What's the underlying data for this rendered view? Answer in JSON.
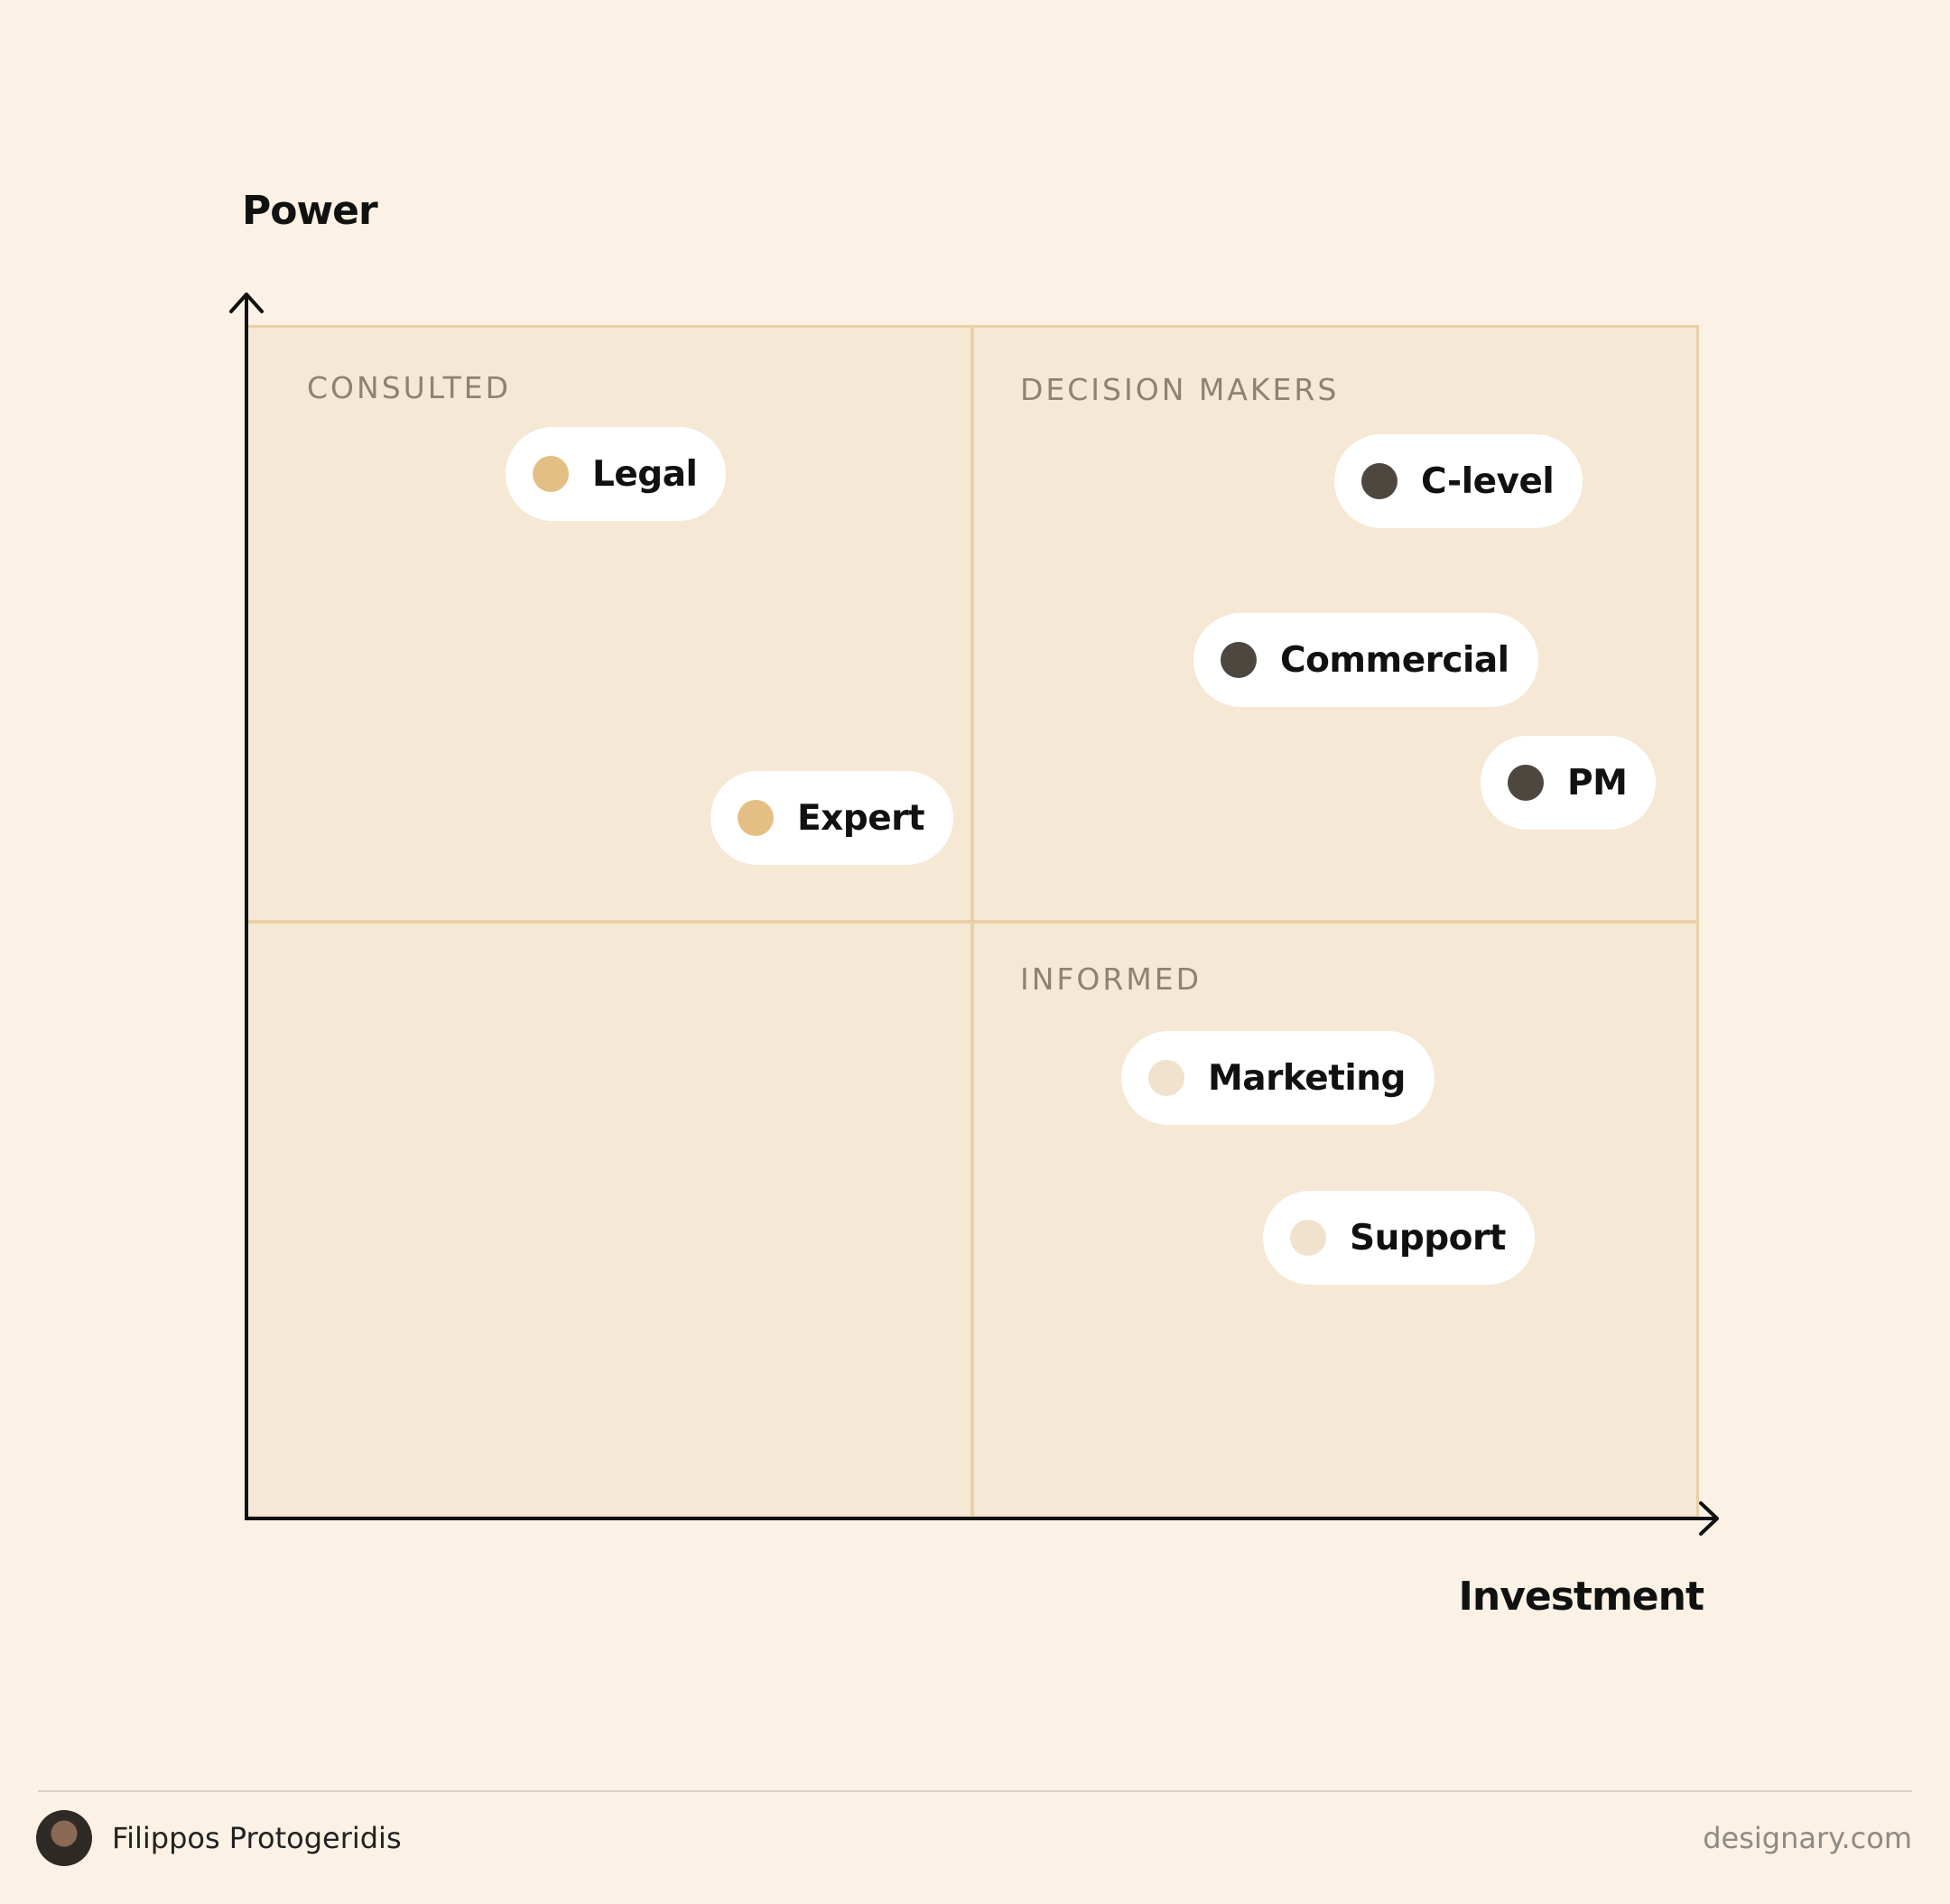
{
  "axes": {
    "y_title": "Power",
    "x_title": "Investment"
  },
  "quadrants": {
    "top_left": "CONSULTED",
    "top_right": "DECISION MAKERS",
    "bottom_left": "",
    "bottom_right": "INFORMED"
  },
  "stakeholders": [
    {
      "label": "Legal",
      "group": "CONSULTED",
      "dot_color": "#e4bf84"
    },
    {
      "label": "Expert",
      "group": "CONSULTED",
      "dot_color": "#e4bf84"
    },
    {
      "label": "C-level",
      "group": "DECISION MAKERS",
      "dot_color": "#4d4740"
    },
    {
      "label": "Commercial",
      "group": "DECISION MAKERS",
      "dot_color": "#4d4740"
    },
    {
      "label": "PM",
      "group": "DECISION MAKERS",
      "dot_color": "#4d4740"
    },
    {
      "label": "Marketing",
      "group": "INFORMED",
      "dot_color": "#f0e2cc"
    },
    {
      "label": "Support",
      "group": "INFORMED",
      "dot_color": "#f0e2cc"
    }
  ],
  "colors": {
    "background": "#fbf1e4",
    "quadrant_fill": "#f5e8d5",
    "quadrant_border": "#ead0a6",
    "axis": "#111111"
  },
  "footer": {
    "author": "Filippos Protogeridis",
    "site": "designary.com"
  }
}
